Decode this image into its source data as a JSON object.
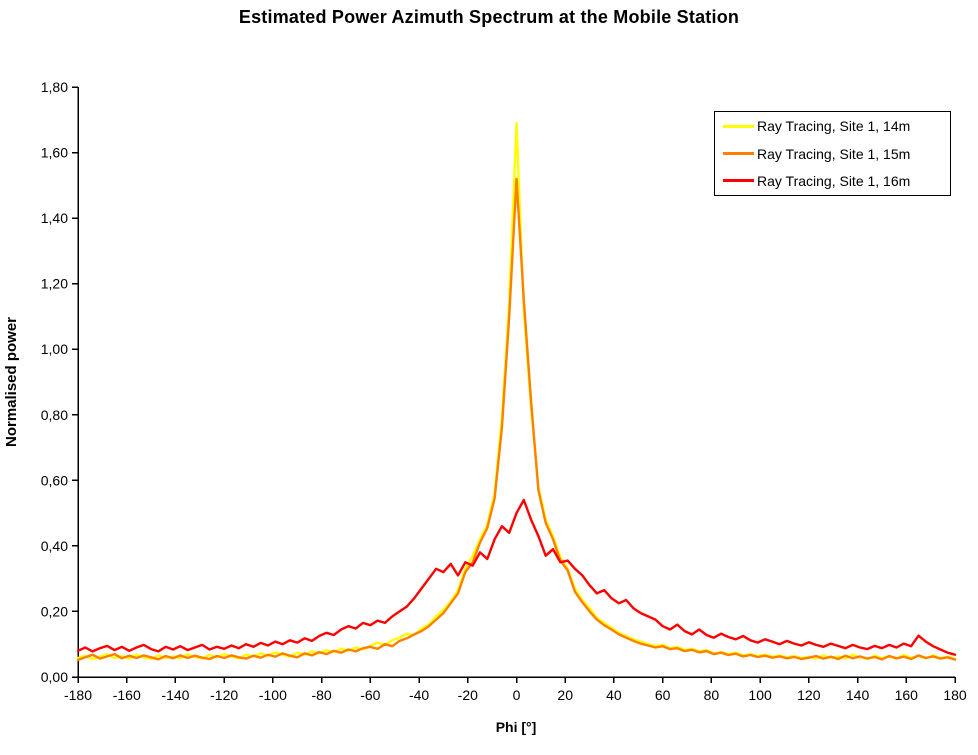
{
  "chart_data": {
    "type": "line",
    "title": "Estimated Power Azimuth Spectrum at the Mobile Station",
    "xlabel": "Phi [°]",
    "ylabel": "Normalised power",
    "xlim": [
      -180,
      180
    ],
    "ylim": [
      0,
      1.8
    ],
    "grid": false,
    "legend_position": "top-right",
    "x_ticks": [
      -180,
      -160,
      -140,
      -120,
      -100,
      -80,
      -60,
      -40,
      -20,
      0,
      20,
      40,
      60,
      80,
      100,
      120,
      140,
      160,
      180
    ],
    "y_ticks": [
      {
        "value": 0.0,
        "label": "0,00"
      },
      {
        "value": 0.2,
        "label": "0,20"
      },
      {
        "value": 0.4,
        "label": "0,40"
      },
      {
        "value": 0.6,
        "label": "0,60"
      },
      {
        "value": 0.8,
        "label": "0,80"
      },
      {
        "value": 1.0,
        "label": "1,00"
      },
      {
        "value": 1.2,
        "label": "1,20"
      },
      {
        "value": 1.4,
        "label": "1,40"
      },
      {
        "value": 1.6,
        "label": "1,60"
      },
      {
        "value": 1.8,
        "label": "1,80"
      }
    ],
    "phi_start": -180,
    "phi_step": 3,
    "series": [
      {
        "name": "Ray Tracing, Site 1, 14m",
        "color": "#FFFF00",
        "peak": 1.69,
        "values": [
          0.058,
          0.065,
          0.055,
          0.062,
          0.07,
          0.058,
          0.064,
          0.056,
          0.068,
          0.06,
          0.055,
          0.066,
          0.058,
          0.063,
          0.057,
          0.069,
          0.061,
          0.056,
          0.067,
          0.06,
          0.07,
          0.062,
          0.057,
          0.068,
          0.063,
          0.072,
          0.065,
          0.075,
          0.068,
          0.062,
          0.074,
          0.068,
          0.078,
          0.072,
          0.082,
          0.076,
          0.086,
          0.08,
          0.09,
          0.084,
          0.095,
          0.105,
          0.098,
          0.112,
          0.12,
          0.132,
          0.128,
          0.148,
          0.16,
          0.185,
          0.205,
          0.23,
          0.265,
          0.33,
          0.37,
          0.42,
          0.465,
          0.56,
          0.79,
          1.14,
          1.69,
          1.12,
          0.82,
          0.58,
          0.48,
          0.43,
          0.365,
          0.33,
          0.27,
          0.235,
          0.21,
          0.18,
          0.165,
          0.15,
          0.135,
          0.125,
          0.115,
          0.108,
          0.1,
          0.095,
          0.098,
          0.088,
          0.092,
          0.082,
          0.086,
          0.078,
          0.082,
          0.072,
          0.076,
          0.07,
          0.074,
          0.066,
          0.07,
          0.064,
          0.068,
          0.062,
          0.066,
          0.06,
          0.064,
          0.058,
          0.062,
          0.056,
          0.066,
          0.058,
          0.063,
          0.056,
          0.068,
          0.06,
          0.055,
          0.065,
          0.058,
          0.062,
          0.056,
          0.067,
          0.059,
          0.064,
          0.057,
          0.066,
          0.058,
          0.062,
          0.055
        ]
      },
      {
        "name": "Ray Tracing, Site 1, 15m",
        "color": "#FF8000",
        "peak": 1.52,
        "values": [
          0.052,
          0.06,
          0.068,
          0.056,
          0.063,
          0.07,
          0.057,
          0.065,
          0.058,
          0.066,
          0.06,
          0.054,
          0.064,
          0.057,
          0.066,
          0.058,
          0.065,
          0.059,
          0.055,
          0.064,
          0.058,
          0.066,
          0.06,
          0.056,
          0.065,
          0.059,
          0.068,
          0.062,
          0.072,
          0.065,
          0.06,
          0.072,
          0.066,
          0.076,
          0.07,
          0.08,
          0.074,
          0.084,
          0.078,
          0.088,
          0.092,
          0.086,
          0.1,
          0.094,
          0.11,
          0.118,
          0.13,
          0.14,
          0.155,
          0.175,
          0.195,
          0.225,
          0.255,
          0.32,
          0.35,
          0.41,
          0.455,
          0.545,
          0.76,
          1.1,
          1.52,
          1.15,
          0.84,
          0.57,
          0.47,
          0.42,
          0.355,
          0.325,
          0.26,
          0.228,
          0.2,
          0.175,
          0.158,
          0.145,
          0.13,
          0.12,
          0.11,
          0.102,
          0.096,
          0.09,
          0.094,
          0.085,
          0.088,
          0.079,
          0.083,
          0.075,
          0.079,
          0.07,
          0.074,
          0.067,
          0.071,
          0.063,
          0.067,
          0.061,
          0.065,
          0.059,
          0.063,
          0.057,
          0.061,
          0.055,
          0.059,
          0.064,
          0.056,
          0.062,
          0.055,
          0.065,
          0.057,
          0.063,
          0.056,
          0.061,
          0.054,
          0.064,
          0.057,
          0.062,
          0.055,
          0.066,
          0.058,
          0.063,
          0.056,
          0.06,
          0.053
        ]
      },
      {
        "name": "Ray Tracing, Site 1, 16m",
        "color": "#FF0000",
        "peak": 0.54,
        "values": [
          0.08,
          0.09,
          0.078,
          0.088,
          0.095,
          0.082,
          0.092,
          0.08,
          0.09,
          0.098,
          0.085,
          0.078,
          0.092,
          0.084,
          0.094,
          0.082,
          0.09,
          0.098,
          0.084,
          0.092,
          0.086,
          0.096,
          0.088,
          0.1,
          0.092,
          0.104,
          0.096,
          0.108,
          0.1,
          0.112,
          0.105,
          0.118,
          0.11,
          0.125,
          0.135,
          0.128,
          0.145,
          0.155,
          0.148,
          0.165,
          0.158,
          0.172,
          0.165,
          0.185,
          0.2,
          0.215,
          0.24,
          0.27,
          0.3,
          0.33,
          0.32,
          0.345,
          0.31,
          0.35,
          0.34,
          0.38,
          0.36,
          0.42,
          0.46,
          0.44,
          0.5,
          0.54,
          0.48,
          0.43,
          0.37,
          0.39,
          0.35,
          0.355,
          0.33,
          0.31,
          0.28,
          0.255,
          0.265,
          0.24,
          0.225,
          0.235,
          0.21,
          0.195,
          0.185,
          0.175,
          0.155,
          0.145,
          0.16,
          0.14,
          0.13,
          0.145,
          0.128,
          0.12,
          0.132,
          0.122,
          0.115,
          0.125,
          0.112,
          0.105,
          0.115,
          0.108,
          0.1,
          0.11,
          0.102,
          0.096,
          0.106,
          0.098,
          0.092,
          0.102,
          0.095,
          0.088,
          0.098,
          0.09,
          0.085,
          0.095,
          0.088,
          0.098,
          0.09,
          0.102,
          0.094,
          0.126,
          0.108,
          0.094,
          0.084,
          0.074,
          0.068
        ]
      }
    ],
    "axis_color": "#000000",
    "background_color": "#FFFFFF"
  }
}
